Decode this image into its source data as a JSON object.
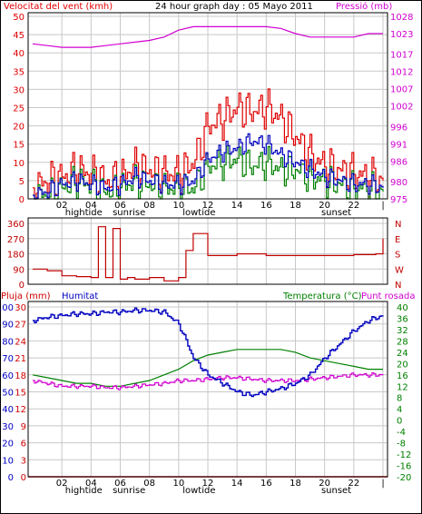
{
  "colors": {
    "wind_speed": "#e00000",
    "wind_avg": "#0000c0",
    "wind_gust": "#008000",
    "pressure": "#d000d0",
    "direction": "#c00000",
    "humidity": "#0000c0",
    "temperature": "#008000",
    "dewpoint": "#d000d0",
    "rain": "#d00000",
    "grid": "#c8c8c8"
  },
  "top": {
    "title_left": "Velocitat del vent (kmh)",
    "title_center": "24 hour graph day : 05 Mayo 2011",
    "title_right": "Pressió (mb)"
  },
  "middle": {
    "direction_labels": [
      "N",
      "W",
      "S",
      "E",
      "N"
    ]
  },
  "bottom": {
    "label_rain": "Pluja (mm)",
    "label_humidity": "Humitat",
    "label_temperature": "Temperatura (°C)",
    "label_dewpoint": "Punt rosada"
  },
  "x_axis": {
    "hour_ticks": [
      "02",
      "04",
      "06",
      "08",
      "10",
      "12",
      "14",
      "16",
      "18",
      "20",
      "22",
      "|"
    ],
    "events": [
      "hightide",
      "sunrise",
      "lowtide",
      "sunset"
    ]
  },
  "chart_data": [
    {
      "type": "line",
      "title": "24 hour graph day : 05 Mayo 2011",
      "x_ticks": [
        "02",
        "04",
        "06",
        "08",
        "10",
        "12",
        "14",
        "16",
        "18",
        "20",
        "22",
        "|"
      ],
      "y_left_label": "Velocitat del vent (kmh)",
      "y_left_ticks": [
        0,
        5,
        10,
        15,
        20,
        25,
        30,
        35,
        40,
        45,
        50
      ],
      "y_left_lim": [
        0,
        50
      ],
      "y_right_label": "Pressió (mb)",
      "y_right_ticks": [
        975,
        980,
        986,
        991,
        996,
        1002,
        1007,
        1012,
        1017,
        1023,
        1028
      ],
      "y_right_lim": [
        975,
        1028
      ],
      "x_hours": [
        0,
        1,
        2,
        3,
        4,
        5,
        6,
        7,
        8,
        9,
        10,
        11,
        12,
        13,
        14,
        15,
        16,
        17,
        18,
        19,
        20,
        21,
        22,
        23,
        24
      ],
      "series": [
        {
          "key": "speed",
          "values": [
            3,
            5,
            6,
            8,
            7,
            5,
            6,
            9,
            8,
            7,
            7,
            10,
            20,
            22,
            25,
            24,
            25,
            22,
            17,
            12,
            9,
            8,
            7,
            6,
            5
          ]
        },
        {
          "key": "avg",
          "values": [
            1,
            2,
            4,
            5,
            4,
            3,
            4,
            6,
            5,
            4,
            4,
            5,
            11,
            13,
            14,
            16,
            15,
            12,
            10,
            8,
            6,
            5,
            4,
            4,
            3
          ]
        },
        {
          "key": "gust",
          "values": [
            1,
            1,
            3,
            5,
            4,
            2,
            3,
            5,
            4,
            3,
            3,
            3,
            9,
            10,
            11,
            9,
            10,
            8,
            8,
            6,
            5,
            4,
            3,
            3,
            2
          ]
        },
        {
          "key": "pressure",
          "values": [
            1020,
            1019.5,
            1019,
            1019,
            1019,
            1019.5,
            1020,
            1020.5,
            1021,
            1022,
            1024,
            1025,
            1025,
            1025,
            1025,
            1025,
            1025,
            1024.5,
            1023,
            1022,
            1022,
            1022,
            1022,
            1023,
            1023
          ]
        }
      ]
    },
    {
      "type": "line",
      "title": "",
      "y_left_ticks": [
        0,
        90,
        180,
        270,
        360
      ],
      "y_left_lim": [
        0,
        360
      ],
      "y_right_labels": [
        "N",
        "W",
        "S",
        "E",
        "N"
      ],
      "x_hours": [
        0,
        1,
        2,
        3,
        4,
        4.5,
        5,
        5.5,
        6,
        6.5,
        7,
        8,
        9,
        10,
        10.5,
        11,
        12,
        13,
        14,
        16,
        18,
        20,
        22,
        23.5,
        24
      ],
      "series": [
        {
          "key": "direction",
          "values": [
            90,
            80,
            50,
            45,
            40,
            340,
            40,
            330,
            30,
            40,
            30,
            40,
            20,
            40,
            200,
            300,
            170,
            170,
            180,
            170,
            170,
            170,
            175,
            180,
            270
          ]
        }
      ]
    },
    {
      "type": "line",
      "title": "",
      "y_left_label": "Pluja (mm) / Humitat",
      "y_left_ticks_rain": [
        0,
        3,
        6,
        9,
        12,
        15,
        18,
        21,
        24,
        27,
        30
      ],
      "y_left_ticks_humidity": [
        0,
        10,
        20,
        30,
        40,
        50,
        60,
        70,
        80,
        90,
        100
      ],
      "y_left_lim": [
        0,
        100
      ],
      "y_right_label": "Temperatura (°C) / Punt rosada",
      "y_right_ticks": [
        -20,
        -16,
        -12,
        -8,
        -4,
        0,
        4,
        8,
        12,
        16,
        20,
        24,
        28,
        32,
        36,
        40
      ],
      "y_right_lim": [
        -20,
        40
      ],
      "x_hours": [
        0,
        1,
        2,
        3,
        4,
        5,
        6,
        7,
        8,
        9,
        10,
        11,
        12,
        13,
        14,
        15,
        16,
        17,
        18,
        19,
        20,
        21,
        22,
        23,
        24
      ],
      "series": [
        {
          "key": "humidity",
          "values": [
            92,
            94,
            95,
            96,
            96,
            97,
            97,
            98,
            98,
            97,
            90,
            70,
            60,
            55,
            50,
            48,
            50,
            52,
            55,
            60,
            70,
            78,
            86,
            92,
            95
          ]
        },
        {
          "key": "temperature",
          "values": [
            16,
            15,
            14,
            13,
            13,
            12,
            12,
            13,
            14,
            16,
            18,
            21,
            23,
            24,
            25,
            25,
            25,
            25,
            24,
            22,
            21,
            20,
            19,
            18,
            18
          ]
        },
        {
          "key": "dewpoint",
          "values": [
            14,
            13,
            12,
            12,
            12,
            11.5,
            11.5,
            12,
            12.5,
            13,
            14,
            14,
            14.5,
            15,
            15,
            14.5,
            14,
            14,
            14,
            14.5,
            15,
            15.5,
            16,
            16,
            16
          ]
        },
        {
          "key": "rain",
          "values": [
            0,
            0,
            0,
            0,
            0,
            0,
            0,
            0,
            0,
            0,
            0,
            0,
            0,
            0,
            0,
            0,
            0,
            0,
            0,
            0,
            0,
            0,
            0,
            0,
            0
          ]
        }
      ]
    }
  ]
}
